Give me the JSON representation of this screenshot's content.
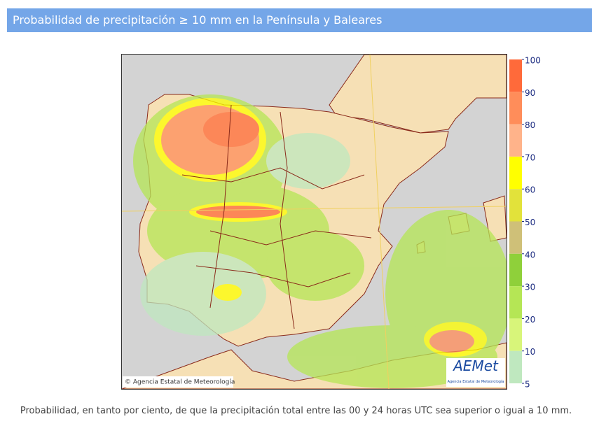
{
  "header": {
    "title": "Probabilidad de precipitación ≥ 10 mm en la Península y Baleares"
  },
  "map": {
    "credit": "© Agencia Estatal de Meteorología",
    "logo": {
      "name": "AEMet",
      "subtitle": "Agencia Estatal de Meteorología"
    }
  },
  "legend": {
    "ticks": [
      100,
      90,
      80,
      70,
      60,
      50,
      40,
      30,
      20,
      10,
      5
    ],
    "colors": [
      "#ff6a3a",
      "#ff8d5a",
      "#ffb38a",
      "#ffff00",
      "#e2e23a",
      "#cfc078",
      "#8fd03a",
      "#b5e655",
      "#d8f57a",
      "#bfe8bf"
    ]
  },
  "caption": "Probabilidad, en tanto por ciento, de que la precipitación total entre las 00 y 24 horas UTC sea superior o igual a 10 mm."
}
